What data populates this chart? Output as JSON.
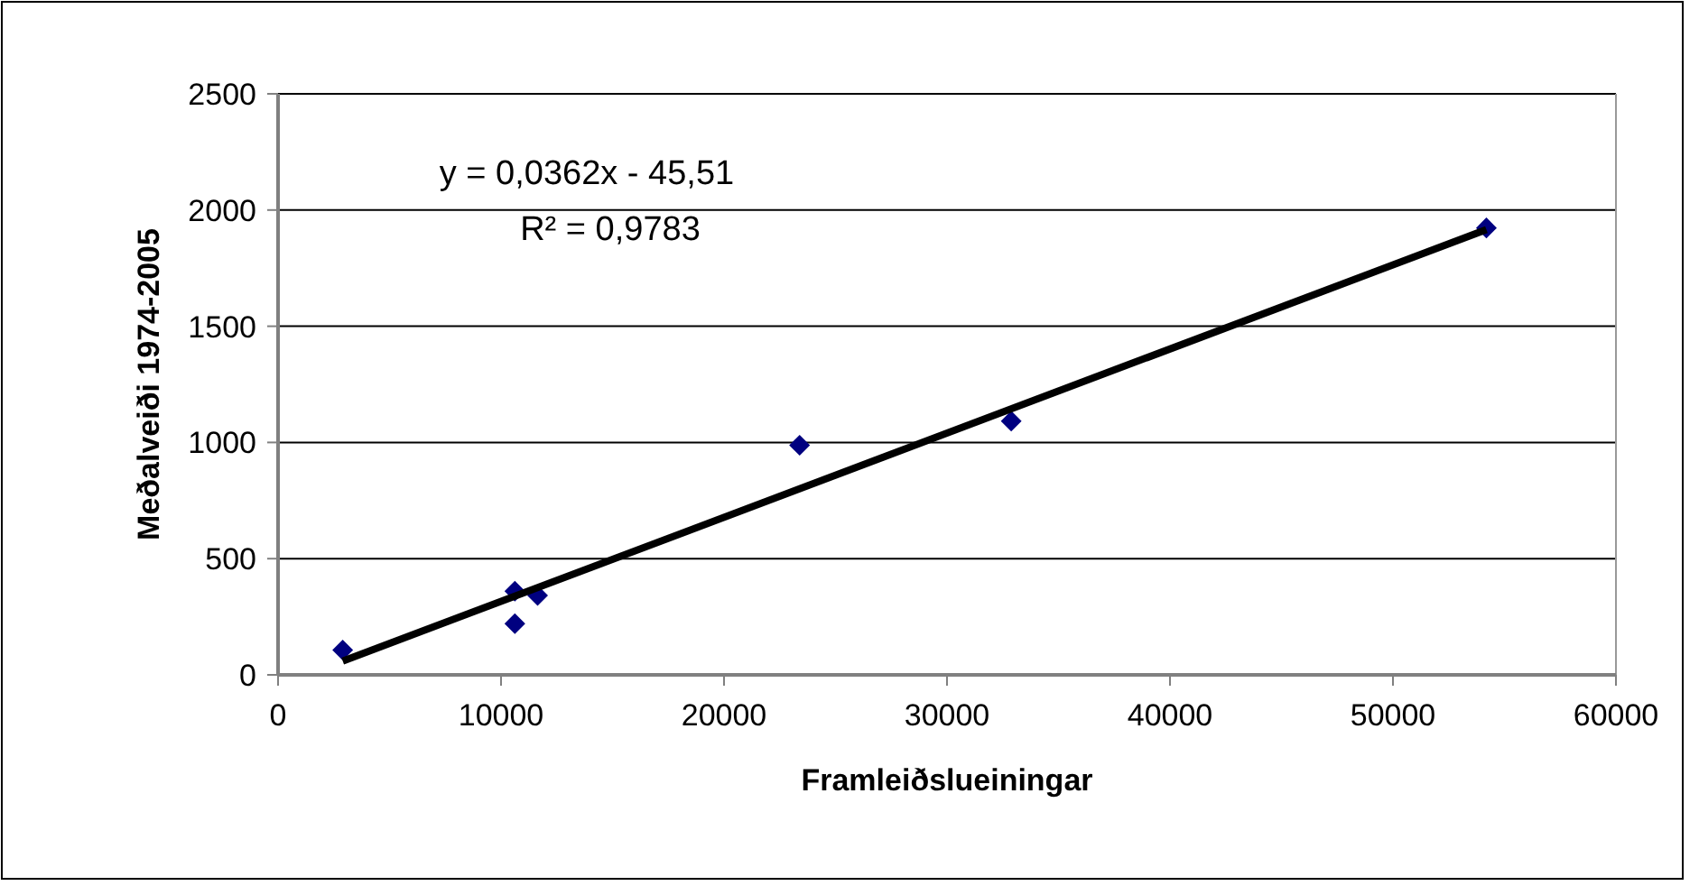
{
  "chart_data": {
    "type": "scatter",
    "xlabel": "Framleiðslueiningar",
    "ylabel": "Meðalveiði 1974-2005",
    "xlim": [
      0,
      60000
    ],
    "xticks": [
      0,
      10000,
      20000,
      30000,
      40000,
      50000,
      60000
    ],
    "ylim": [
      0,
      2500
    ],
    "yticks": [
      0,
      500,
      1000,
      1500,
      2000,
      2500
    ],
    "grid": "y",
    "annotations": [
      "y = 0,0362x - 45,51",
      "R² = 0,9783"
    ],
    "series": [
      {
        "marker": "diamond",
        "color": "#000080",
        "x": [
          2900,
          10620,
          10620,
          11640,
          23390,
          32880,
          54190
        ],
        "values": [
          107,
          360,
          220,
          342,
          988,
          1092,
          1923
        ]
      },
      {
        "type": "line",
        "marker": "none",
        "color": "#000000",
        "x": [
          2900,
          54190
        ],
        "values": [
          59,
          1916
        ]
      }
    ]
  }
}
